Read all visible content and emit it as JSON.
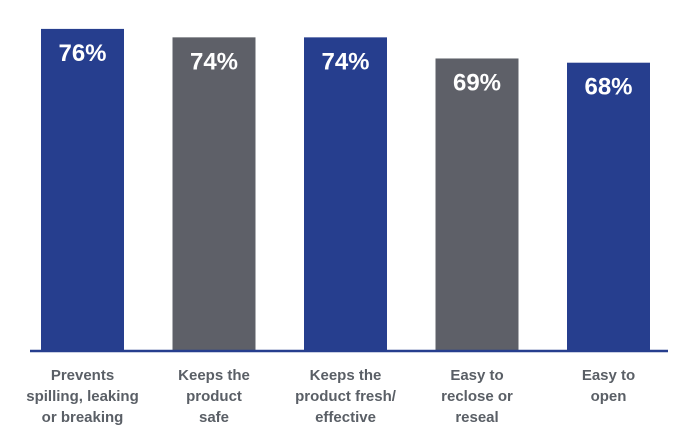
{
  "chart_data": {
    "type": "bar",
    "categories": [
      [
        "Prevents",
        "spilling, leaking",
        "or breaking"
      ],
      [
        "Keeps the",
        "product",
        "safe"
      ],
      [
        "Keeps the",
        "product fresh/",
        "effective"
      ],
      [
        "Easy to",
        "reclose or",
        "reseal"
      ],
      [
        "Easy to",
        "open"
      ]
    ],
    "values": [
      76,
      74,
      74,
      69,
      68
    ],
    "value_labels": [
      "76%",
      "74%",
      "74%",
      "69%",
      "68%"
    ],
    "bar_colors": [
      "#263e8e",
      "#5e6068",
      "#263e8e",
      "#5e6068",
      "#263e8e"
    ],
    "axis_color": "#263e8e",
    "label_color": "#5a5f66",
    "title": "",
    "xlabel": "",
    "ylabel": "",
    "ylim": [
      0,
      80
    ],
    "grid": false,
    "legend": "none"
  }
}
